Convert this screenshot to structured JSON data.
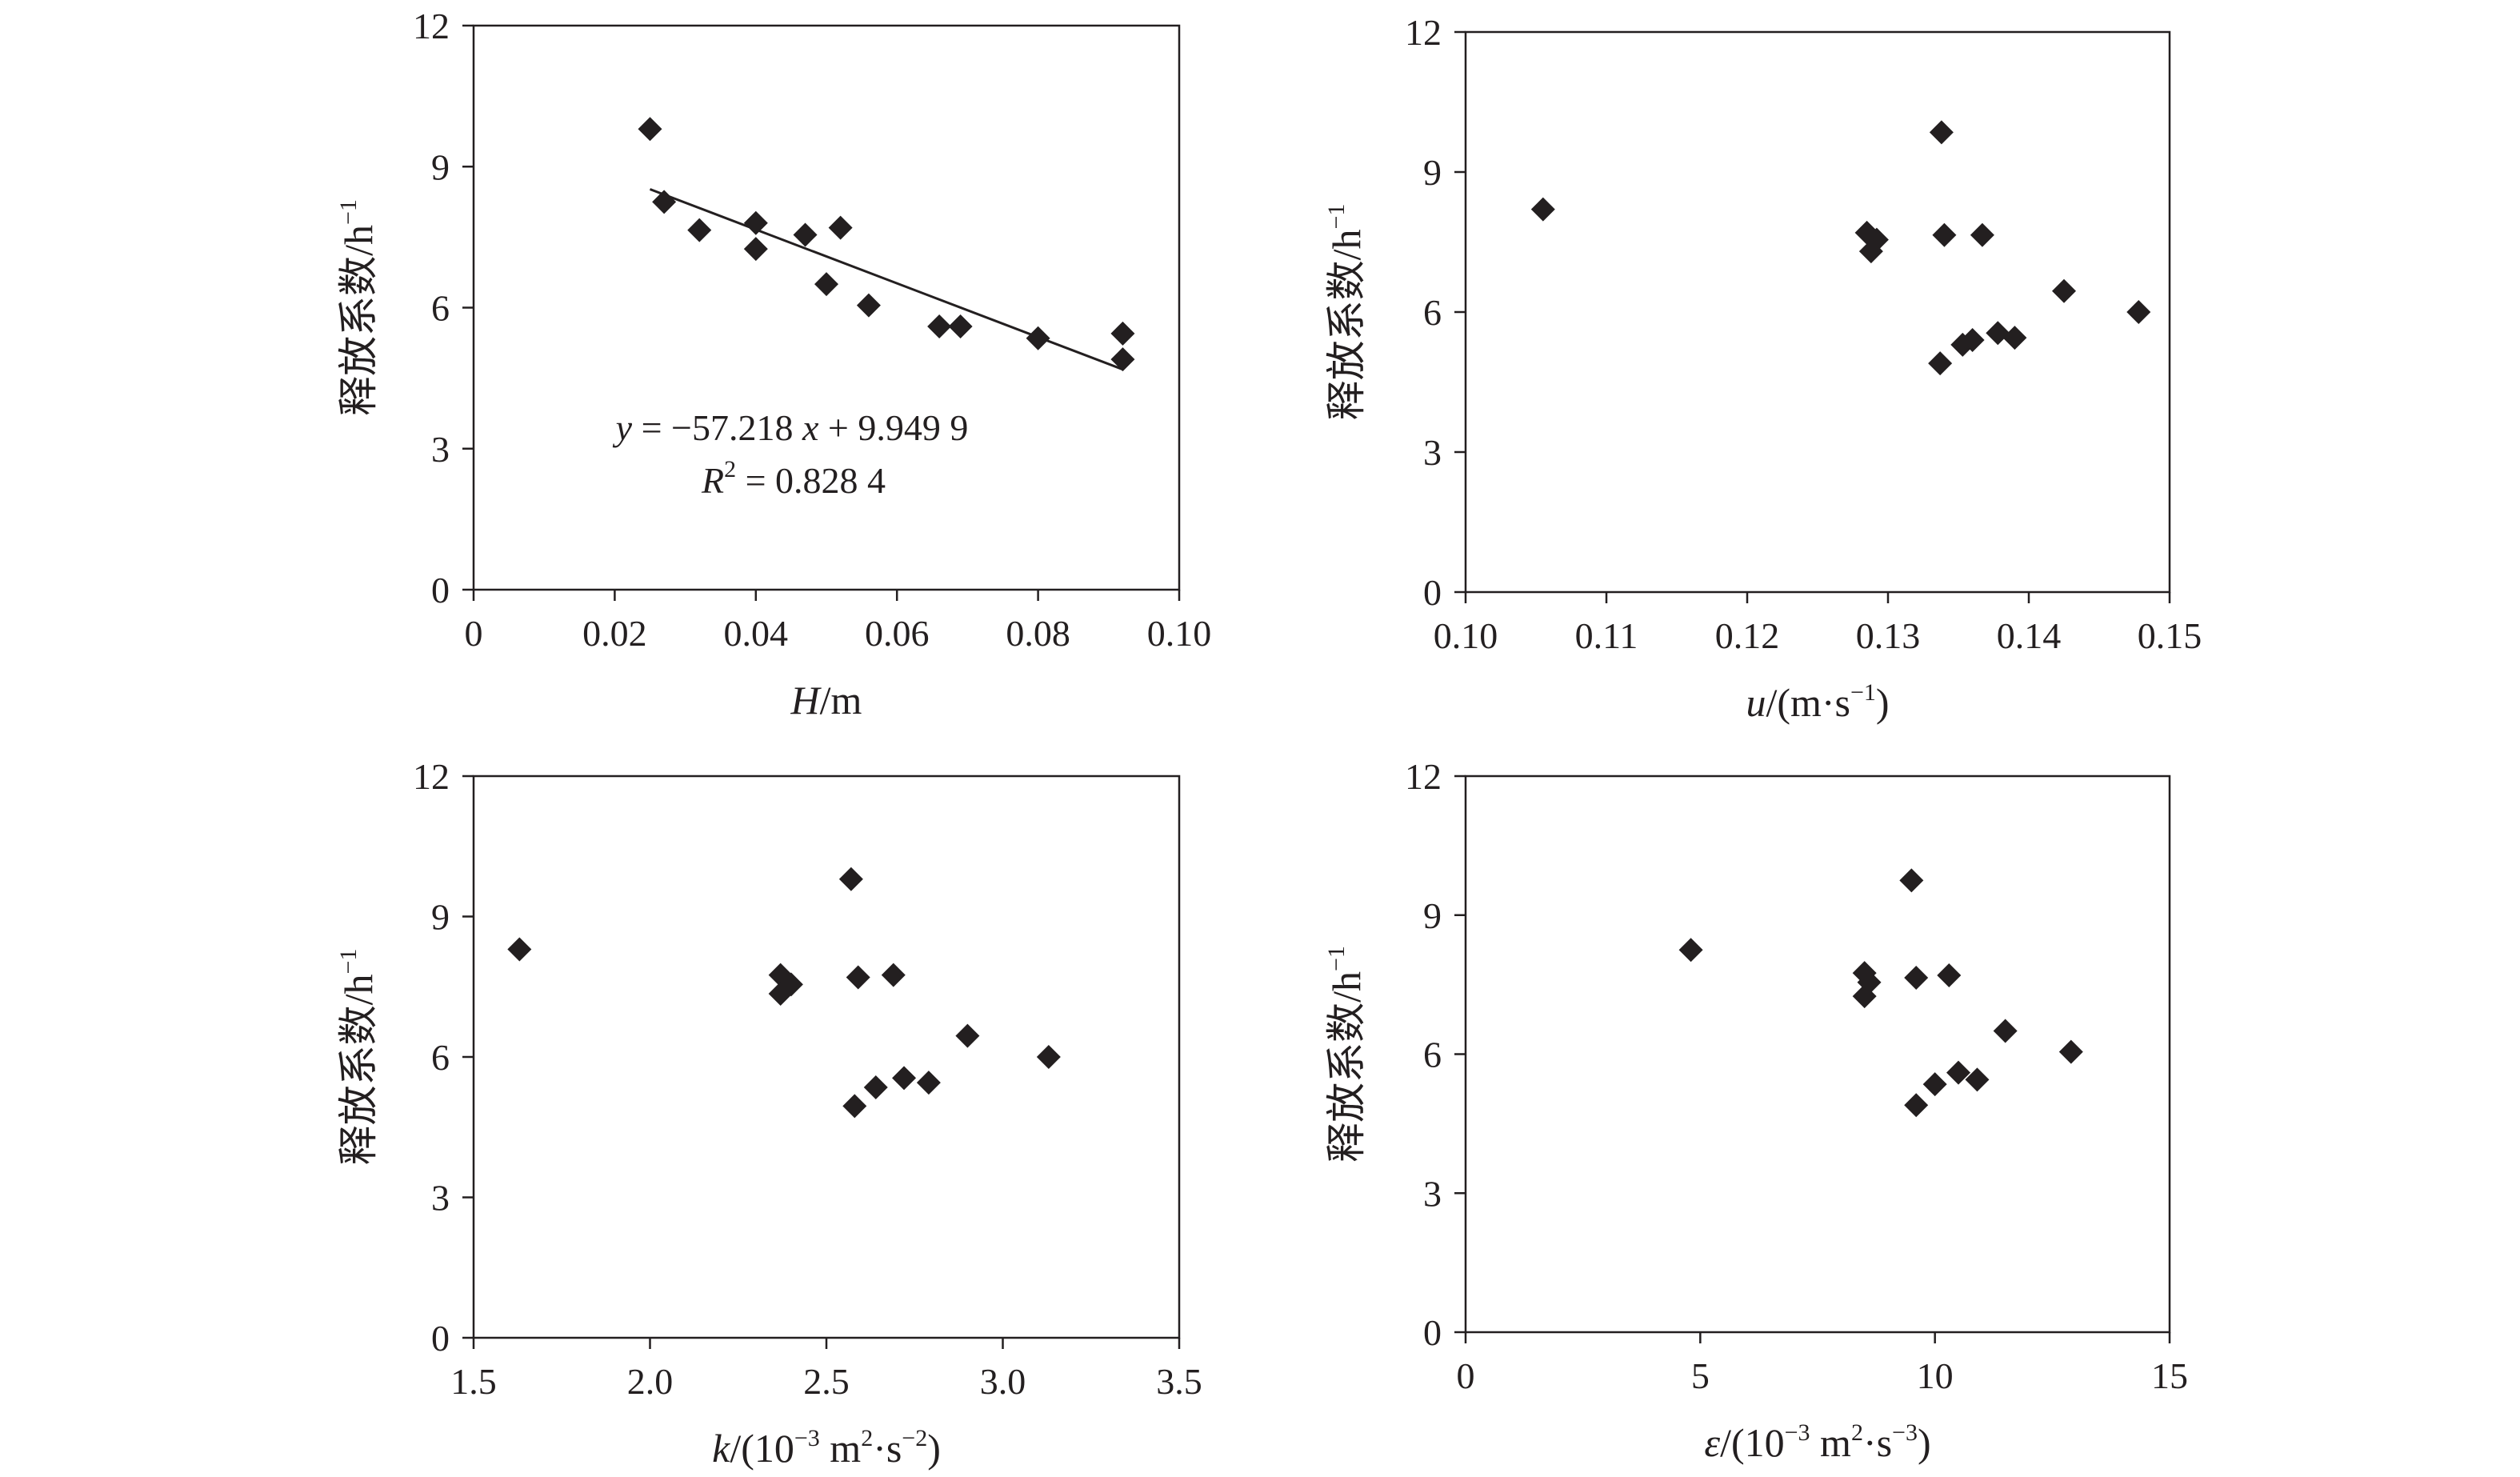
{
  "chart_data": [
    {
      "id": "h",
      "type": "scatter",
      "xlabel_parts": [
        {
          "t": "H",
          "i": true
        },
        {
          "t": "/m"
        }
      ],
      "ylabel": "释放系数/h",
      "ylabel_sup": "−1",
      "xlim": [
        0,
        0.1
      ],
      "ylim": [
        0,
        12
      ],
      "xticks": [
        0,
        0.02,
        0.04,
        0.06,
        0.08,
        0.1
      ],
      "xtick_labels": [
        "0",
        "0.02",
        "0.04",
        "0.06",
        "0.08",
        "0.10"
      ],
      "yticks": [
        0,
        3,
        6,
        9,
        12
      ],
      "ytick_labels": [
        "0",
        "3",
        "6",
        "9",
        "12"
      ],
      "points": [
        [
          0.025,
          9.8
        ],
        [
          0.027,
          8.25
        ],
        [
          0.032,
          7.65
        ],
        [
          0.04,
          7.8
        ],
        [
          0.04,
          7.25
        ],
        [
          0.047,
          7.55
        ],
        [
          0.052,
          7.7
        ],
        [
          0.05,
          6.5
        ],
        [
          0.056,
          6.05
        ],
        [
          0.066,
          5.6
        ],
        [
          0.069,
          5.6
        ],
        [
          0.08,
          5.35
        ],
        [
          0.092,
          5.45
        ],
        [
          0.092,
          4.9
        ]
      ],
      "fit": {
        "slope": -57.218,
        "intercept": 9.9499,
        "x_range": [
          0.025,
          0.092
        ]
      },
      "equation_parts": [
        {
          "t": "y",
          "i": true
        },
        {
          "t": " = −57.218 "
        },
        {
          "t": "x",
          "i": true
        },
        {
          "t": " + 9.949 9"
        }
      ],
      "r2_parts": [
        {
          "t": "R",
          "i": true
        },
        {
          "t": "2",
          "sup": true
        },
        {
          "t": " = 0.828 4"
        }
      ]
    },
    {
      "id": "u",
      "type": "scatter",
      "xlabel_parts": [
        {
          "t": "u",
          "i": true
        },
        {
          "t": "/(m·s"
        },
        {
          "t": "−1",
          "sup": true
        },
        {
          "t": ")"
        }
      ],
      "ylabel": "释放系数/h",
      "ylabel_sup": "−1",
      "xlim": [
        0.1,
        0.15
      ],
      "ylim": [
        0,
        12
      ],
      "xticks": [
        0.1,
        0.11,
        0.12,
        0.13,
        0.14,
        0.15
      ],
      "xtick_labels": [
        "0.10",
        "0.11",
        "0.12",
        "0.13",
        "0.14",
        "0.15"
      ],
      "yticks": [
        0,
        3,
        6,
        9,
        12
      ],
      "ytick_labels": [
        "0",
        "3",
        "6",
        "9",
        "12"
      ],
      "points": [
        [
          0.1055,
          8.2
        ],
        [
          0.1285,
          7.7
        ],
        [
          0.1288,
          7.3
        ],
        [
          0.1292,
          7.55
        ],
        [
          0.1338,
          9.85
        ],
        [
          0.134,
          7.65
        ],
        [
          0.1367,
          7.65
        ],
        [
          0.1337,
          4.9
        ],
        [
          0.1353,
          5.3
        ],
        [
          0.136,
          5.4
        ],
        [
          0.1378,
          5.55
        ],
        [
          0.139,
          5.45
        ],
        [
          0.1425,
          6.45
        ],
        [
          0.1478,
          6.0
        ]
      ]
    },
    {
      "id": "k",
      "type": "scatter",
      "xlabel_parts": [
        {
          "t": "k",
          "i": true
        },
        {
          "t": "/(10"
        },
        {
          "t": "−3",
          "sup": true
        },
        {
          "t": " m"
        },
        {
          "t": "2",
          "sup": true
        },
        {
          "t": "·s"
        },
        {
          "t": "−2",
          "sup": true
        },
        {
          "t": ")"
        }
      ],
      "ylabel": "释放系数/h",
      "ylabel_sup": "−1",
      "xlim": [
        1.5,
        3.5
      ],
      "ylim": [
        0,
        12
      ],
      "xticks": [
        1.5,
        2.0,
        2.5,
        3.0,
        3.5
      ],
      "xtick_labels": [
        "1.5",
        "2.0",
        "2.5",
        "3.0",
        "3.5"
      ],
      "yticks": [
        0,
        3,
        6,
        9,
        12
      ],
      "ytick_labels": [
        "0",
        "3",
        "6",
        "9",
        "12"
      ],
      "points": [
        [
          1.63,
          8.3
        ],
        [
          2.37,
          7.75
        ],
        [
          2.37,
          7.35
        ],
        [
          2.4,
          7.55
        ],
        [
          2.57,
          9.8
        ],
        [
          2.59,
          7.7
        ],
        [
          2.69,
          7.75
        ],
        [
          2.58,
          4.95
        ],
        [
          2.64,
          5.35
        ],
        [
          2.72,
          5.55
        ],
        [
          2.79,
          5.45
        ],
        [
          2.9,
          6.45
        ],
        [
          3.13,
          6.0
        ]
      ]
    },
    {
      "id": "e",
      "type": "scatter",
      "xlabel_parts": [
        {
          "t": "ε",
          "i": true
        },
        {
          "t": "/(10"
        },
        {
          "t": "−3",
          "sup": true
        },
        {
          "t": " m"
        },
        {
          "t": "2",
          "sup": true
        },
        {
          "t": "·s"
        },
        {
          "t": "−3",
          "sup": true
        },
        {
          "t": ")"
        }
      ],
      "ylabel": "释放系数/h",
      "ylabel_sup": "−1",
      "xlim": [
        0,
        15
      ],
      "ylim": [
        0,
        12
      ],
      "xticks": [
        0,
        5,
        10,
        15
      ],
      "xtick_labels": [
        "0",
        "5",
        "10",
        "15"
      ],
      "yticks": [
        0,
        3,
        6,
        9,
        12
      ],
      "ytick_labels": [
        "0",
        "3",
        "6",
        "9",
        "12"
      ],
      "points": [
        [
          4.8,
          8.25
        ],
        [
          8.5,
          7.75
        ],
        [
          8.5,
          7.25
        ],
        [
          8.6,
          7.55
        ],
        [
          9.5,
          9.75
        ],
        [
          9.6,
          7.65
        ],
        [
          10.3,
          7.7
        ],
        [
          9.6,
          4.9
        ],
        [
          10.0,
          5.35
        ],
        [
          10.5,
          5.6
        ],
        [
          10.9,
          5.45
        ],
        [
          11.5,
          6.5
        ],
        [
          12.9,
          6.05
        ]
      ]
    }
  ]
}
